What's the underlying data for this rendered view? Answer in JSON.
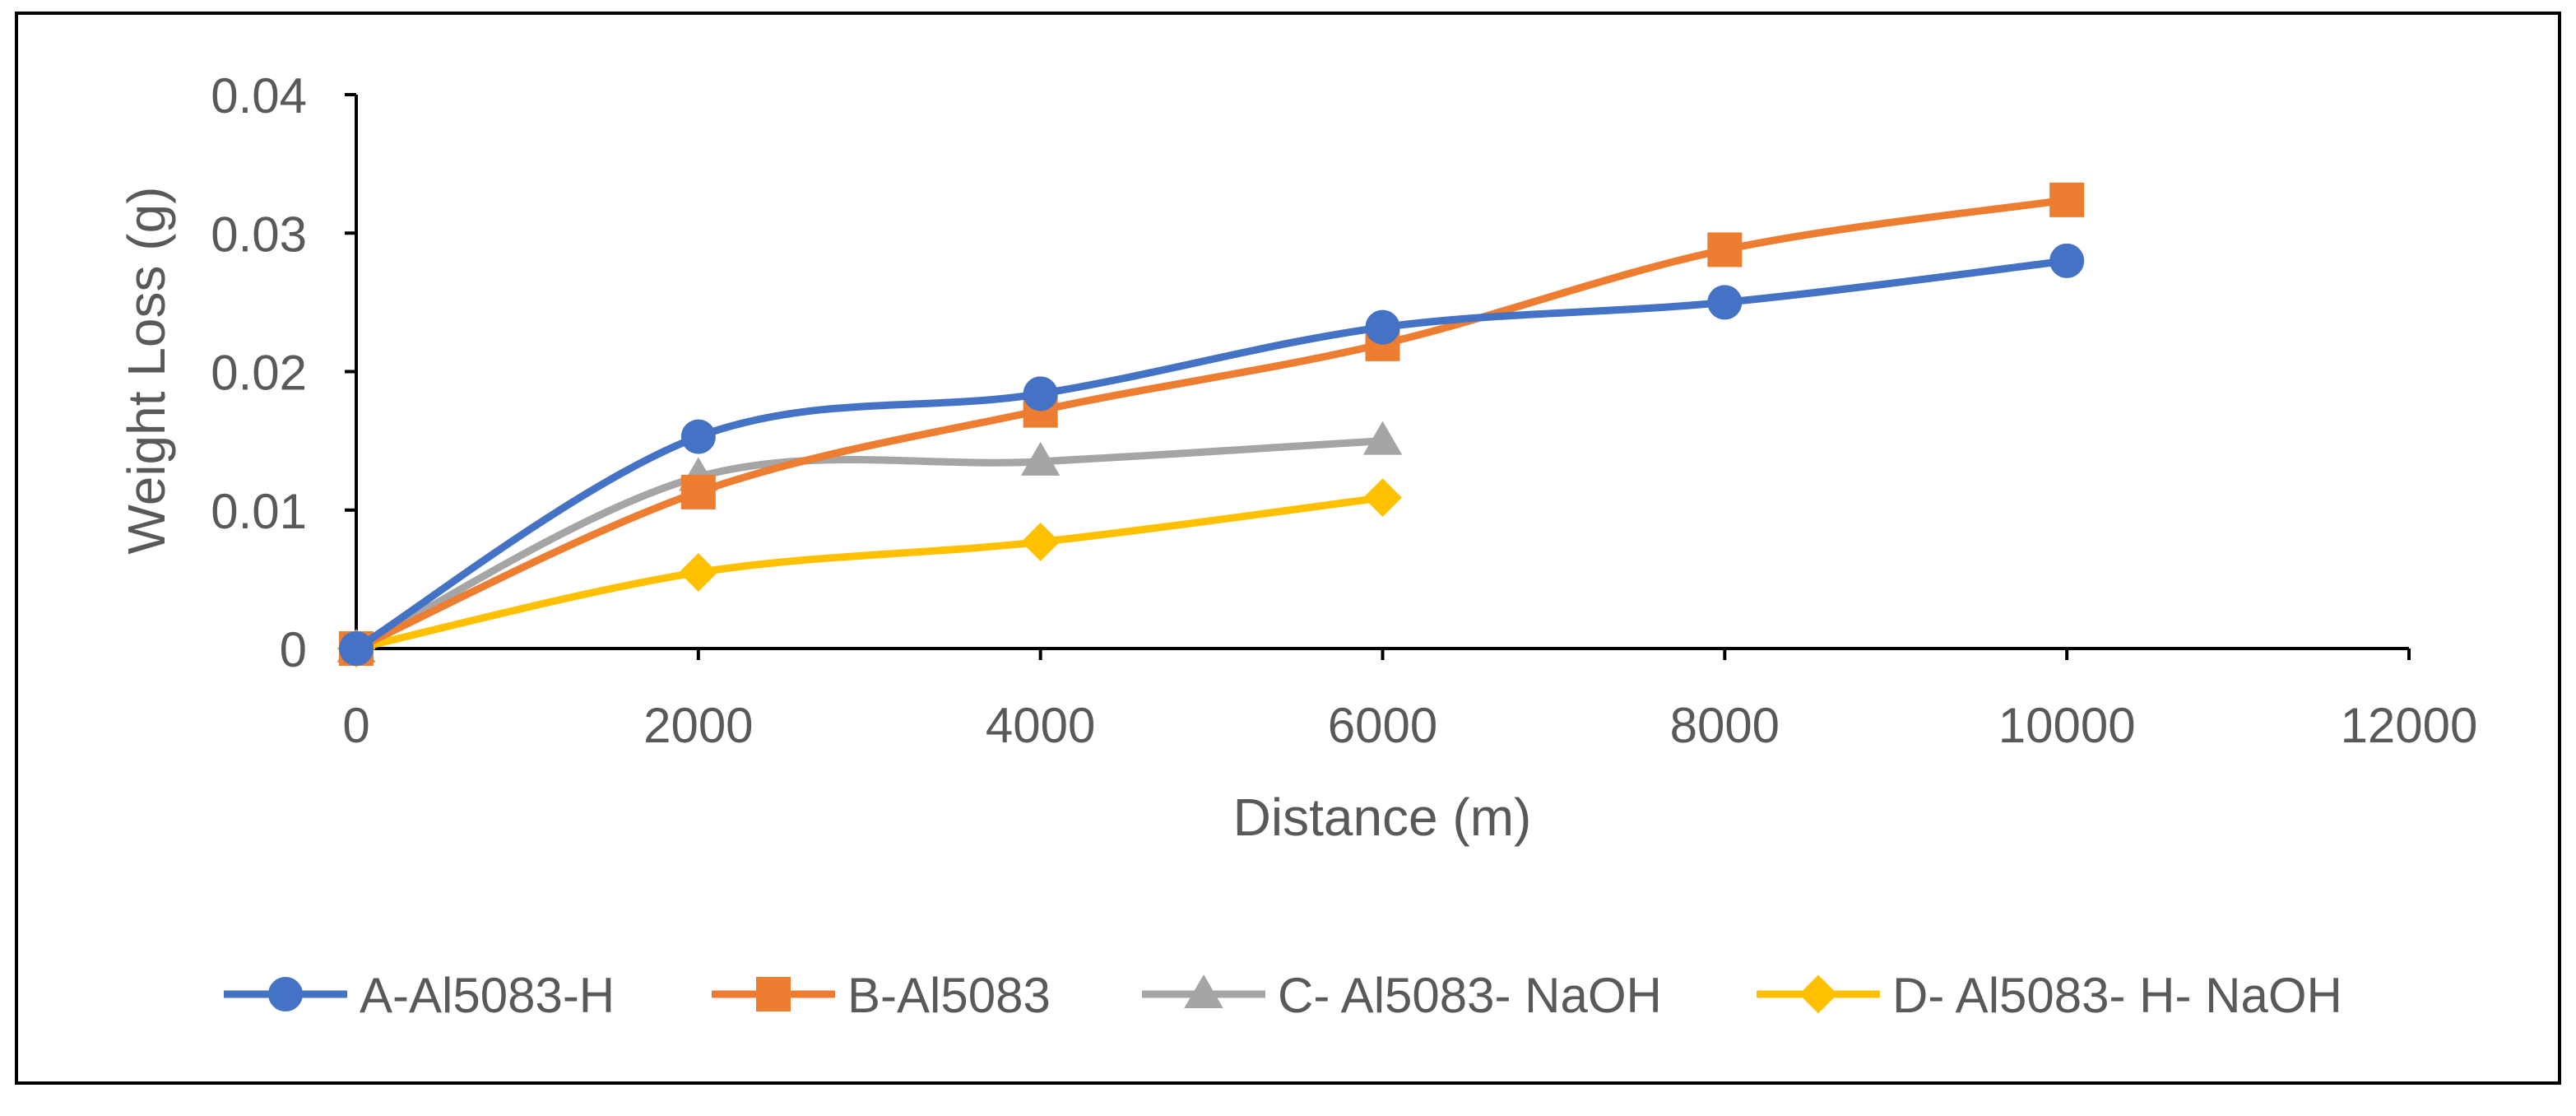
{
  "chart_data": {
    "type": "line",
    "title": "",
    "xlabel": "Distance (m)",
    "ylabel": "Weight Loss (g)",
    "xlim": [
      0,
      12000
    ],
    "ylim": [
      0,
      0.04
    ],
    "xticks": [
      0,
      2000,
      4000,
      6000,
      8000,
      10000,
      12000
    ],
    "yticks": [
      0,
      0.01,
      0.02,
      0.03,
      0.04
    ],
    "xtick_labels": [
      "0",
      "2000",
      "4000",
      "6000",
      "8000",
      "10000",
      "12000"
    ],
    "ytick_labels": [
      "0",
      "0.01",
      "0.02",
      "0.03",
      "0.04"
    ],
    "grid": false,
    "legend_position": "bottom",
    "series": [
      {
        "name": "A-Al5083-H",
        "color": "#4472C4",
        "marker": "circle",
        "x": [
          0,
          2000,
          4000,
          6000,
          8000,
          10000
        ],
        "y": [
          0,
          0.0153,
          0.0184,
          0.0232,
          0.025,
          0.028
        ]
      },
      {
        "name": "B-Al5083",
        "color": "#ED7D31",
        "marker": "square",
        "x": [
          0,
          2000,
          4000,
          6000,
          8000,
          10000
        ],
        "y": [
          0,
          0.0113,
          0.0172,
          0.022,
          0.0288,
          0.0324
        ]
      },
      {
        "name": "C- Al5083- NaOH",
        "color": "#A5A5A5",
        "marker": "triangle",
        "x": [
          0,
          2000,
          4000,
          6000
        ],
        "y": [
          0,
          0.0124,
          0.0135,
          0.015
        ]
      },
      {
        "name": "D- Al5083- H- NaOH",
        "color": "#FFC000",
        "marker": "diamond",
        "x": [
          0,
          2000,
          4000,
          6000
        ],
        "y": [
          0,
          0.0055,
          0.0077,
          0.0109
        ]
      }
    ]
  }
}
